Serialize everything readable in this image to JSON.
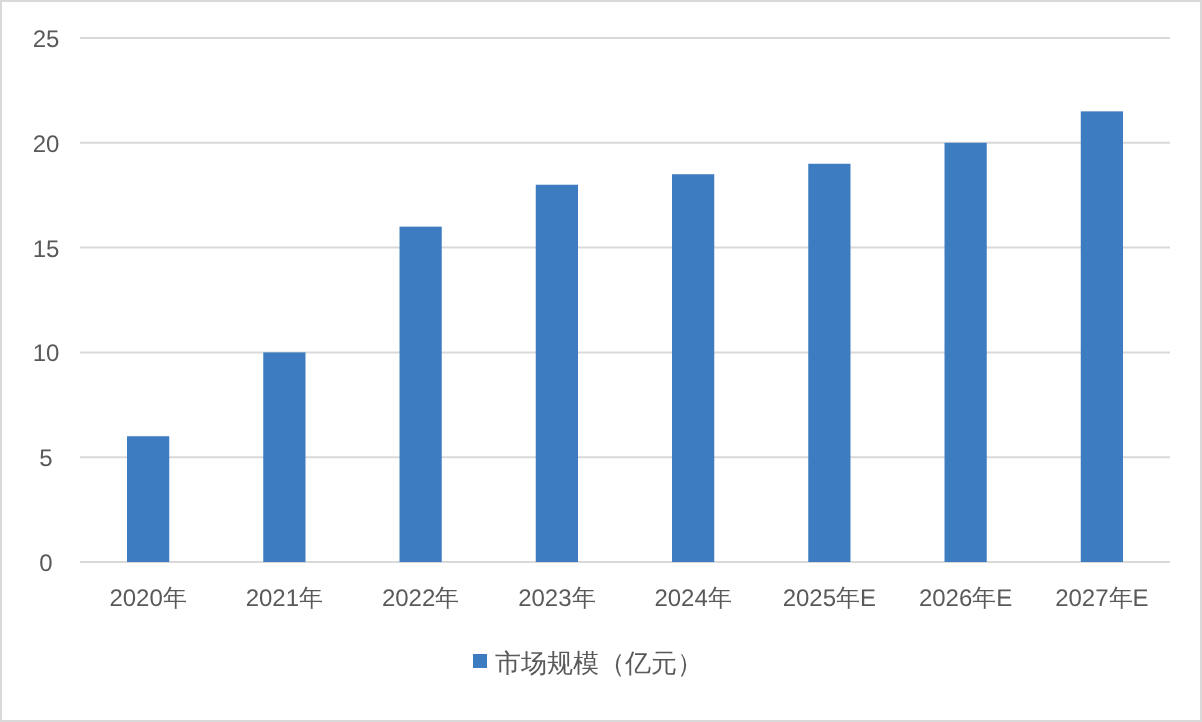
{
  "chart_data": {
    "type": "bar",
    "categories": [
      "2020年",
      "2021年",
      "2022年",
      "2023年",
      "2024年",
      "2025年E",
      "2026年E",
      "2027年E"
    ],
    "series": [
      {
        "name": "市场规模（亿元）",
        "color": "#3d7cc0",
        "values": [
          6,
          10,
          16,
          18,
          18.5,
          19,
          20,
          21.5
        ]
      }
    ],
    "ylim": [
      0,
      25
    ],
    "yticks": [
      0,
      5,
      10,
      15,
      20,
      25
    ],
    "grid": "y",
    "legend": "bottom"
  }
}
